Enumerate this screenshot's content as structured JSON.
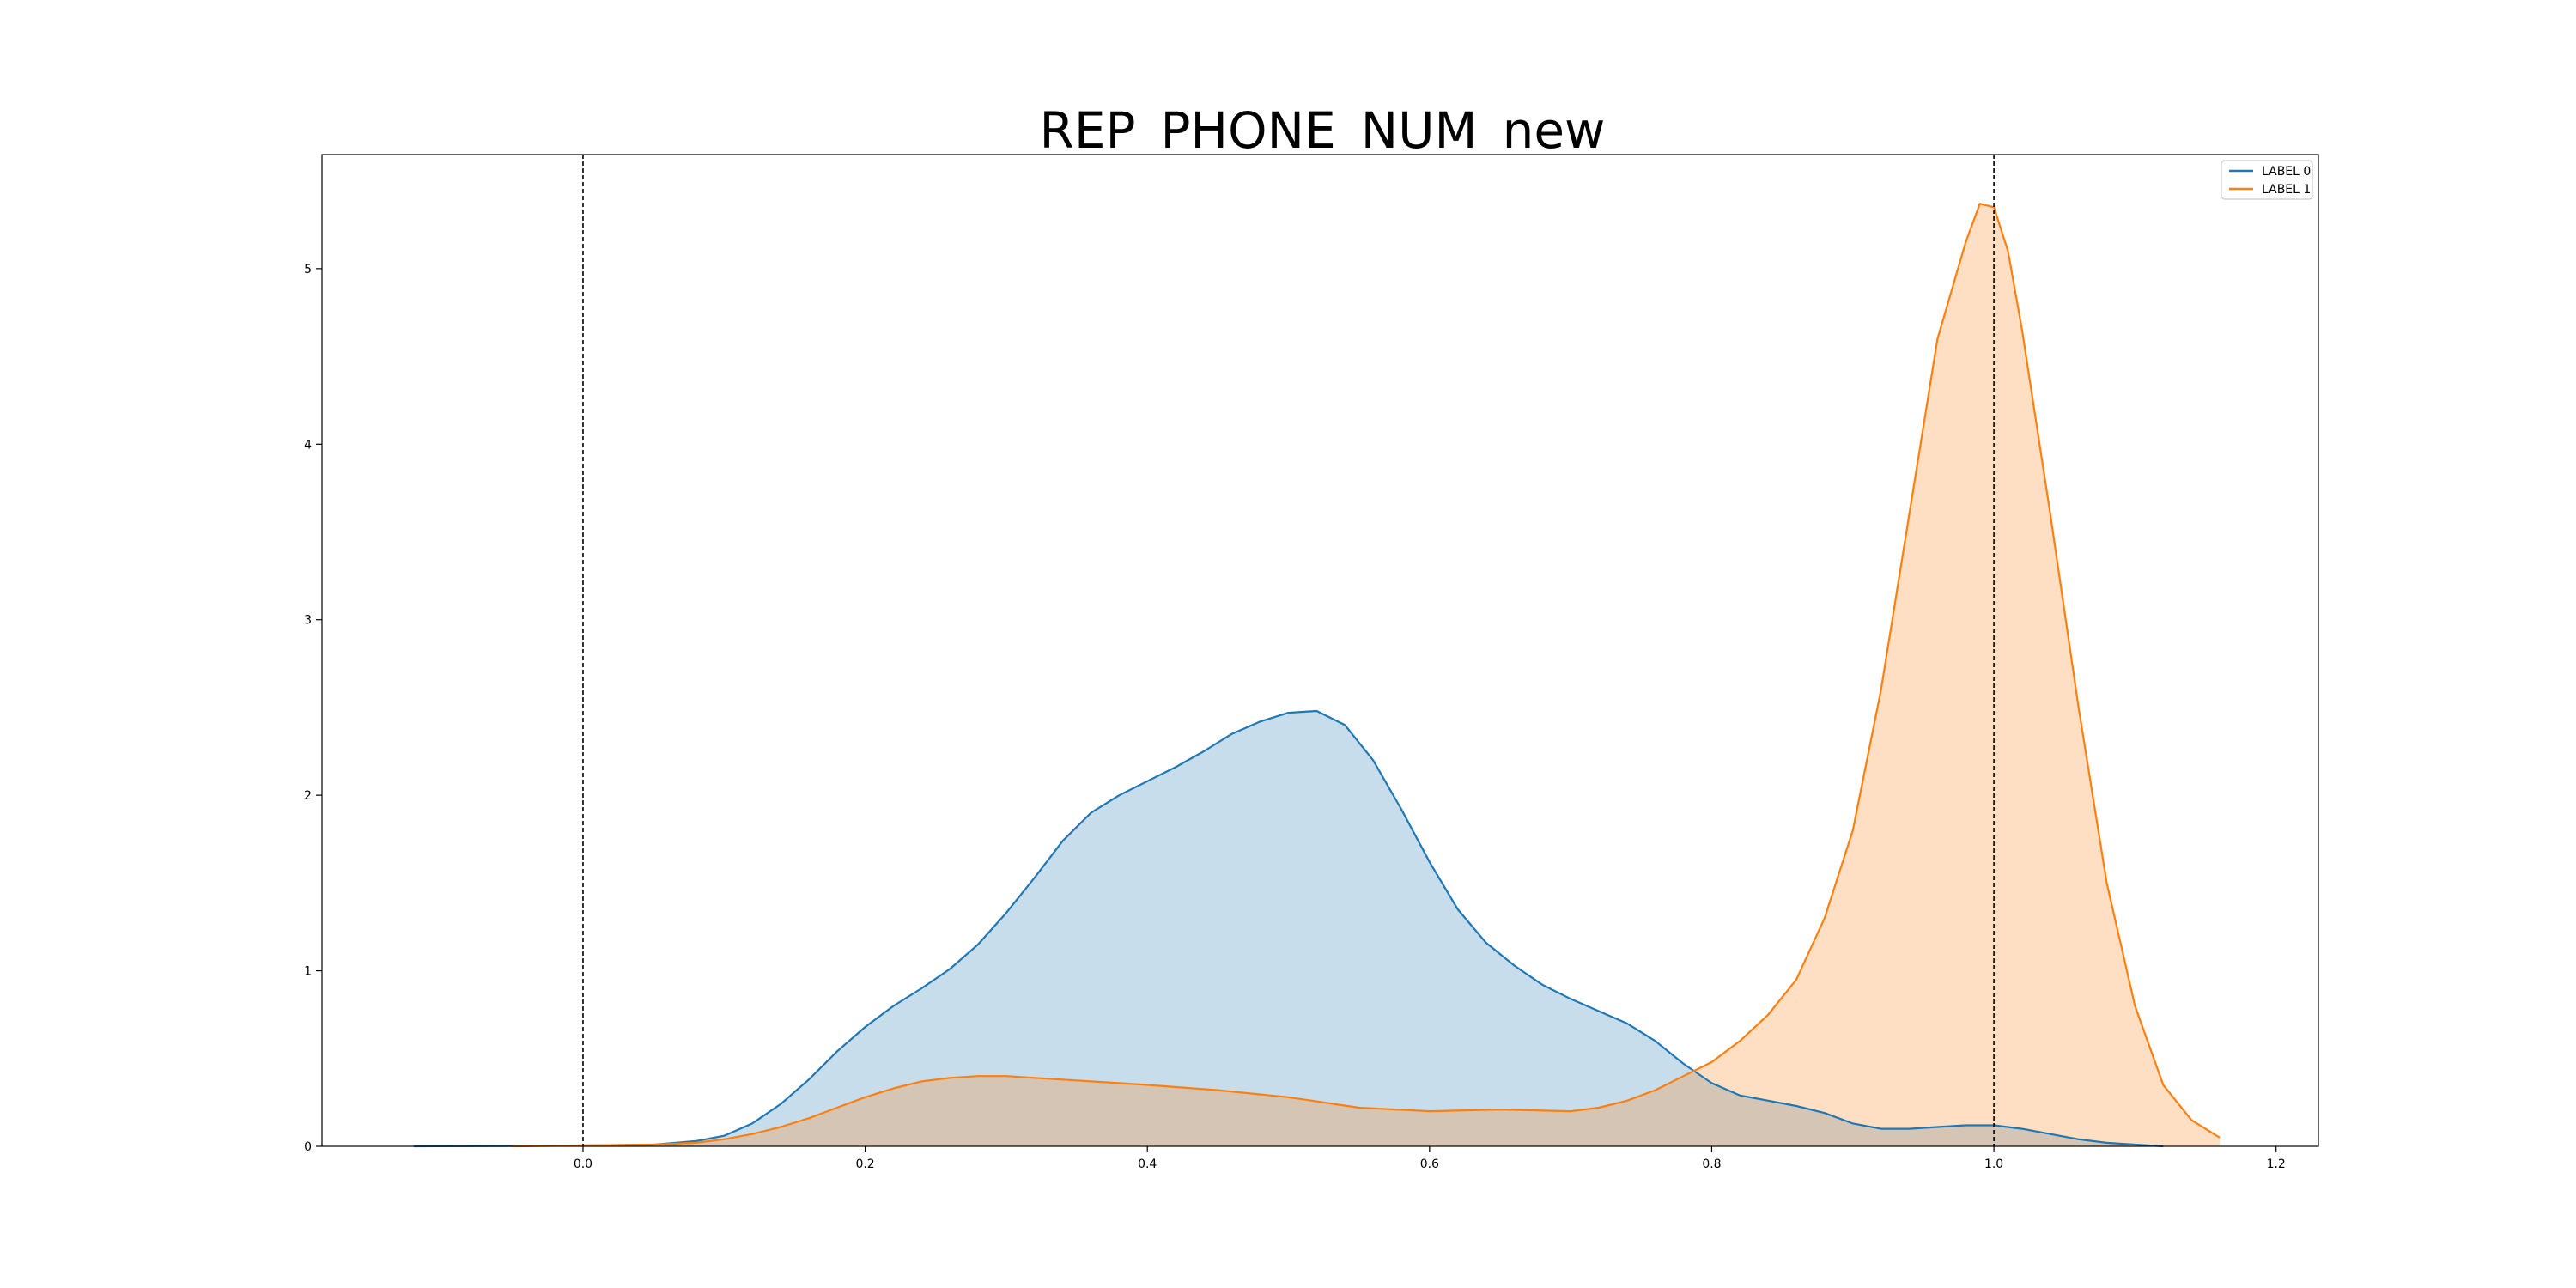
{
  "chart_data": {
    "type": "area",
    "title": "REP_PHONE_NUM_new",
    "xlabel": "",
    "ylabel": "",
    "xlim": [
      -0.185,
      1.23
    ],
    "ylim": [
      0,
      5.65
    ],
    "xticks": [
      "0.0",
      "0.2",
      "0.4",
      "0.6",
      "0.8",
      "1.0",
      "1.2"
    ],
    "xtick_values": [
      0.0,
      0.2,
      0.4,
      0.6,
      0.8,
      1.0,
      1.2
    ],
    "yticks": [
      "0",
      "1",
      "2",
      "3",
      "4",
      "5"
    ],
    "ytick_values": [
      0,
      1,
      2,
      3,
      4,
      5
    ],
    "vlines": [
      0.0,
      1.0
    ],
    "legend": {
      "position": "top-right",
      "entries": [
        "LABEL 0",
        "LABEL 1"
      ]
    },
    "series": [
      {
        "name": "LABEL 0",
        "color": "#1f77b4",
        "fill": "#c6dbed",
        "x": [
          -0.12,
          -0.05,
          0.0,
          0.05,
          0.08,
          0.1,
          0.12,
          0.14,
          0.16,
          0.18,
          0.2,
          0.22,
          0.24,
          0.26,
          0.28,
          0.3,
          0.32,
          0.34,
          0.36,
          0.38,
          0.4,
          0.42,
          0.44,
          0.46,
          0.48,
          0.5,
          0.52,
          0.54,
          0.56,
          0.58,
          0.6,
          0.62,
          0.64,
          0.66,
          0.68,
          0.7,
          0.72,
          0.74,
          0.76,
          0.78,
          0.8,
          0.82,
          0.84,
          0.86,
          0.88,
          0.9,
          0.92,
          0.94,
          0.96,
          0.98,
          1.0,
          1.02,
          1.04,
          1.06,
          1.08,
          1.1,
          1.12
        ],
        "y": [
          0.0,
          0.002,
          0.005,
          0.01,
          0.03,
          0.06,
          0.13,
          0.24,
          0.38,
          0.54,
          0.68,
          0.8,
          0.9,
          1.01,
          1.15,
          1.33,
          1.53,
          1.74,
          1.9,
          2.0,
          2.08,
          2.16,
          2.25,
          2.35,
          2.42,
          2.47,
          2.48,
          2.4,
          2.2,
          1.92,
          1.62,
          1.35,
          1.16,
          1.03,
          0.92,
          0.84,
          0.77,
          0.7,
          0.6,
          0.47,
          0.36,
          0.29,
          0.26,
          0.23,
          0.19,
          0.13,
          0.1,
          0.1,
          0.11,
          0.12,
          0.12,
          0.1,
          0.07,
          0.04,
          0.02,
          0.01,
          0.0
        ]
      },
      {
        "name": "LABEL 1",
        "color": "#ff7f0e",
        "fill": "#fdd8b5",
        "x": [
          -0.05,
          0.0,
          0.05,
          0.08,
          0.1,
          0.12,
          0.14,
          0.16,
          0.18,
          0.2,
          0.22,
          0.24,
          0.26,
          0.28,
          0.3,
          0.32,
          0.34,
          0.36,
          0.38,
          0.4,
          0.45,
          0.5,
          0.55,
          0.6,
          0.65,
          0.7,
          0.72,
          0.74,
          0.76,
          0.78,
          0.8,
          0.82,
          0.84,
          0.86,
          0.88,
          0.9,
          0.92,
          0.94,
          0.96,
          0.98,
          0.99,
          1.0,
          1.01,
          1.02,
          1.04,
          1.06,
          1.08,
          1.1,
          1.12,
          1.14,
          1.16
        ],
        "y": [
          0.0,
          0.005,
          0.01,
          0.02,
          0.04,
          0.07,
          0.11,
          0.16,
          0.22,
          0.28,
          0.33,
          0.37,
          0.39,
          0.4,
          0.4,
          0.39,
          0.38,
          0.37,
          0.36,
          0.35,
          0.32,
          0.28,
          0.22,
          0.2,
          0.21,
          0.2,
          0.22,
          0.26,
          0.32,
          0.4,
          0.48,
          0.6,
          0.75,
          0.95,
          1.3,
          1.8,
          2.6,
          3.6,
          4.6,
          5.15,
          5.37,
          5.35,
          5.1,
          4.65,
          3.6,
          2.5,
          1.5,
          0.8,
          0.35,
          0.15,
          0.05
        ]
      }
    ]
  }
}
